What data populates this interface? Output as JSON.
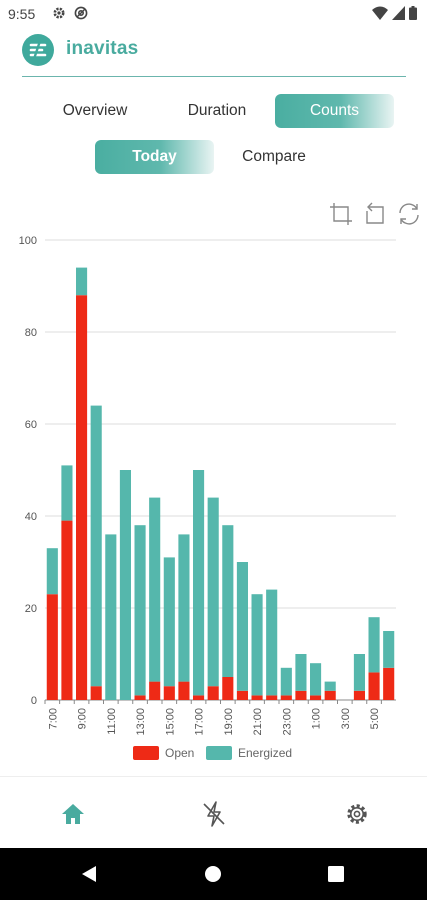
{
  "status_bar": {
    "time": "9:55",
    "icons_left": [
      "gear-icon",
      "at-sign-icon"
    ],
    "icons_right": [
      "wifi-icon",
      "signal-icon",
      "battery-icon"
    ]
  },
  "header": {
    "title": "inavitas",
    "logo_icon": "inavitas-logo-icon",
    "accent_color": "#49ab9f"
  },
  "tabs": [
    {
      "label": "Overview",
      "active": false
    },
    {
      "label": "Duration",
      "active": false
    },
    {
      "label": "Counts",
      "active": true
    }
  ],
  "subtabs": [
    {
      "label": "Today",
      "active": true
    },
    {
      "label": "Compare",
      "active": false
    }
  ],
  "chart_tools": [
    "crop-icon",
    "undo-icon",
    "refresh-icon"
  ],
  "chart_data": {
    "type": "bar",
    "stacked": true,
    "title": "",
    "xlabel": "",
    "ylabel": "",
    "ylim": [
      0,
      100
    ],
    "yticks": [
      0,
      20,
      40,
      60,
      80,
      100
    ],
    "grid": true,
    "legend_position": "bottom",
    "categories": [
      "7:00",
      "8:00",
      "9:00",
      "10:00",
      "11:00",
      "12:00",
      "13:00",
      "14:00",
      "15:00",
      "16:00",
      "17:00",
      "18:00",
      "19:00",
      "20:00",
      "21:00",
      "22:00",
      "23:00",
      "0:00",
      "1:00",
      "2:00",
      "3:00",
      "4:00",
      "5:00",
      "6:00"
    ],
    "tick_labels": [
      "7:00",
      "",
      "9:00",
      "",
      "11:00",
      "",
      "13:00",
      "",
      "15:00",
      "",
      "17:00",
      "",
      "19:00",
      "",
      "21:00",
      "",
      "23:00",
      "",
      "1:00",
      "",
      "3:00",
      "",
      "5:00",
      ""
    ],
    "series": [
      {
        "name": "Open",
        "color": "#ee2a16",
        "values": [
          23,
          39,
          88,
          3,
          0,
          0,
          1,
          4,
          3,
          4,
          1,
          3,
          5,
          2,
          1,
          1,
          1,
          2,
          1,
          2,
          0,
          2,
          6,
          7
        ]
      },
      {
        "name": "Energized",
        "color": "#55b7ac",
        "values": [
          10,
          12,
          6,
          61,
          36,
          50,
          37,
          40,
          28,
          32,
          49,
          41,
          33,
          28,
          22,
          23,
          6,
          8,
          7,
          2,
          0,
          8,
          12,
          8
        ]
      }
    ]
  },
  "bottom_nav": [
    {
      "icon": "home-icon",
      "active": true
    },
    {
      "icon": "flash-off-icon",
      "active": false
    },
    {
      "icon": "settings-icon",
      "active": false
    }
  ],
  "system_nav": [
    "back-icon",
    "home-circle-icon",
    "recents-icon"
  ]
}
